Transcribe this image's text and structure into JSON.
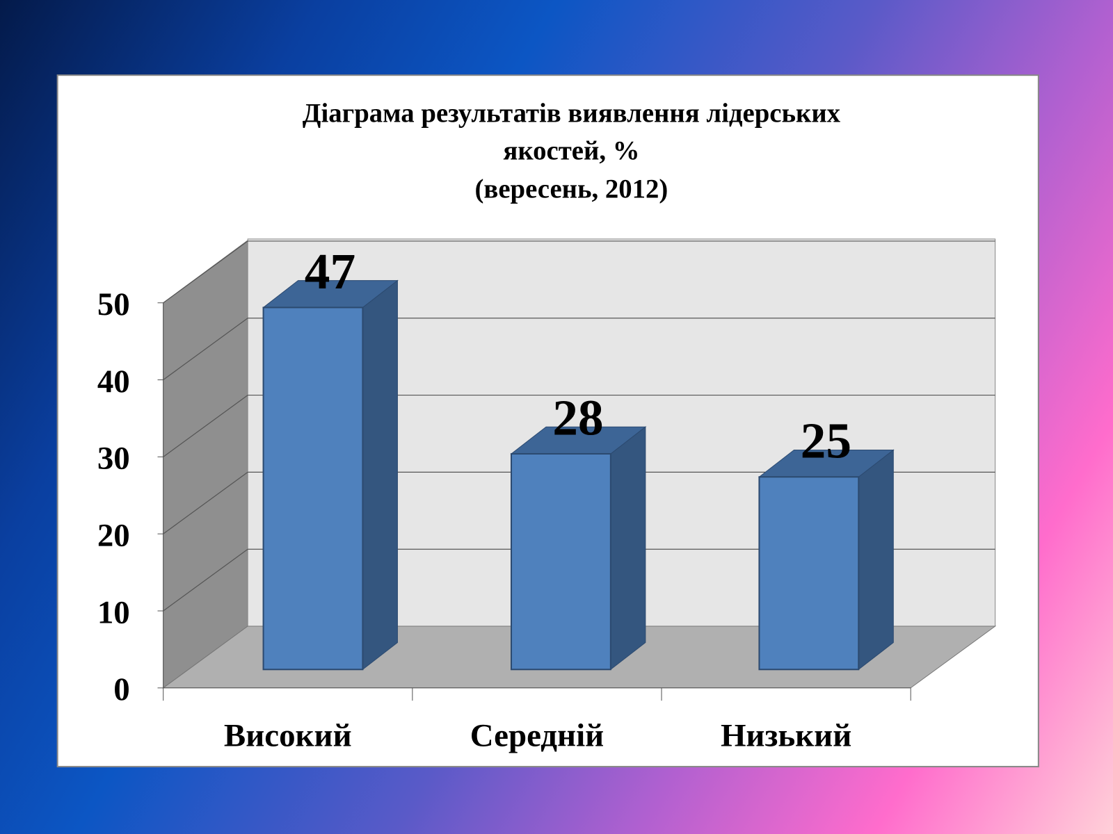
{
  "chart_data": {
    "type": "bar",
    "title_lines": [
      "Діаграма  результатів виявлення лідерських",
      "якостей, %",
      "(вересень, 2012)"
    ],
    "categories": [
      "Високий",
      "Середній",
      "Низький"
    ],
    "values": [
      47,
      28,
      25
    ],
    "data_labels": [
      "47",
      "28",
      "25"
    ],
    "ylim": [
      0,
      50
    ],
    "yticks": [
      "0",
      "10",
      "20",
      "30",
      "40",
      "50"
    ],
    "grid": true,
    "style": "3d-column",
    "colors": {
      "bar_front": "#4f81bd",
      "bar_side": "#34567f",
      "bar_top": "#3d6596",
      "wall": "#e6e6e6",
      "side_wall": "#8f8f8f",
      "floor": "#b0b0b0"
    }
  }
}
